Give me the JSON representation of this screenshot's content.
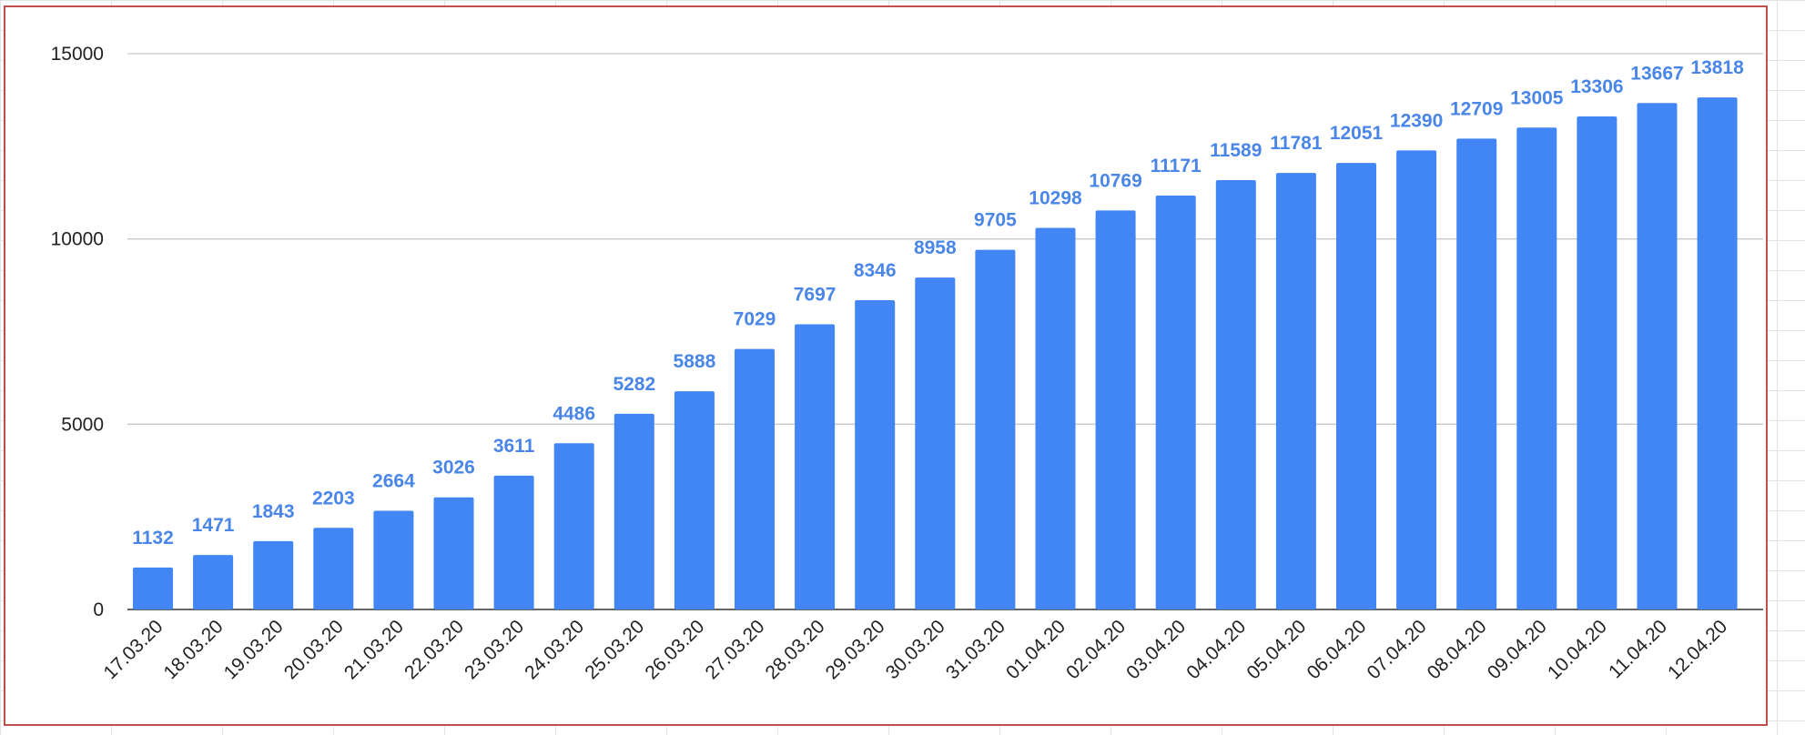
{
  "chart_data": {
    "type": "bar",
    "title": "",
    "xlabel": "",
    "ylabel": "",
    "ylim": [
      0,
      15000
    ],
    "yticks": [
      0,
      5000,
      10000,
      15000
    ],
    "grid": true,
    "bar_color": "#4285f4",
    "label_color": "#4a86e8",
    "categories": [
      "17.03.20",
      "18.03.20",
      "19.03.20",
      "20.03.20",
      "21.03.20",
      "22.03.20",
      "23.03.20",
      "24.03.20",
      "25.03.20",
      "26.03.20",
      "27.03.20",
      "28.03.20",
      "29.03.20",
      "30.03.20",
      "31.03.20",
      "01.04.20",
      "02.04.20",
      "03.04.20",
      "04.04.20",
      "05.04.20",
      "06.04.20",
      "07.04.20",
      "08.04.20",
      "09.04.20",
      "10.04.20",
      "11.04.20",
      "12.04.20"
    ],
    "values": [
      1132,
      1471,
      1843,
      2203,
      2664,
      3026,
      3611,
      4486,
      5282,
      5888,
      7029,
      7697,
      8346,
      8958,
      9705,
      10298,
      10769,
      11171,
      11589,
      11781,
      12051,
      12390,
      12709,
      13005,
      13306,
      13667,
      13818
    ]
  }
}
